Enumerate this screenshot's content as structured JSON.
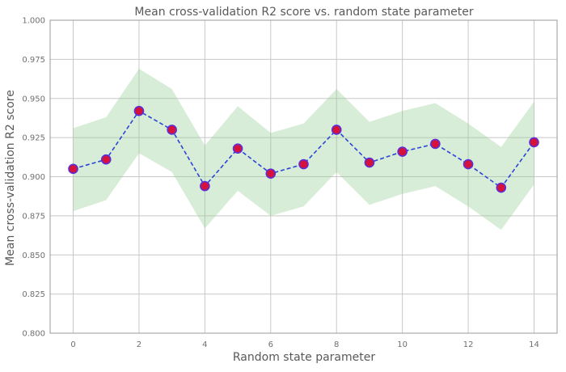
{
  "chart_data": {
    "type": "line",
    "title": "Mean cross-validation R2 score vs. random state parameter",
    "xlabel": "Random state parameter",
    "ylabel": "Mean cross-validation R2 score",
    "xlim": [
      -0.7,
      14.7
    ],
    "ylim": [
      0.8,
      1.0
    ],
    "x_ticks": [
      0,
      2,
      4,
      6,
      8,
      10,
      12,
      14
    ],
    "y_ticks": [
      0.8,
      0.825,
      0.85,
      0.875,
      0.9,
      0.925,
      0.95,
      0.975,
      1.0
    ],
    "grid": true,
    "x": [
      0,
      1,
      2,
      3,
      4,
      5,
      6,
      7,
      8,
      9,
      10,
      11,
      12,
      13,
      14
    ],
    "series": [
      {
        "values": [
          0.905,
          0.911,
          0.942,
          0.93,
          0.894,
          0.918,
          0.902,
          0.908,
          0.93,
          0.909,
          0.916,
          0.921,
          0.908,
          0.893,
          0.922
        ],
        "line_color": "#2b45d6",
        "line_style": "dashed",
        "marker_fill": "#d6123c",
        "marker_edge": "#5a2fd6"
      }
    ],
    "band": {
      "lower": [
        0.878,
        0.885,
        0.915,
        0.903,
        0.867,
        0.891,
        0.875,
        0.881,
        0.903,
        0.882,
        0.889,
        0.894,
        0.881,
        0.866,
        0.895
      ],
      "upper": [
        0.931,
        0.938,
        0.969,
        0.956,
        0.92,
        0.945,
        0.928,
        0.934,
        0.956,
        0.935,
        0.942,
        0.947,
        0.934,
        0.919,
        0.948
      ],
      "color": "#8fca8f"
    }
  }
}
